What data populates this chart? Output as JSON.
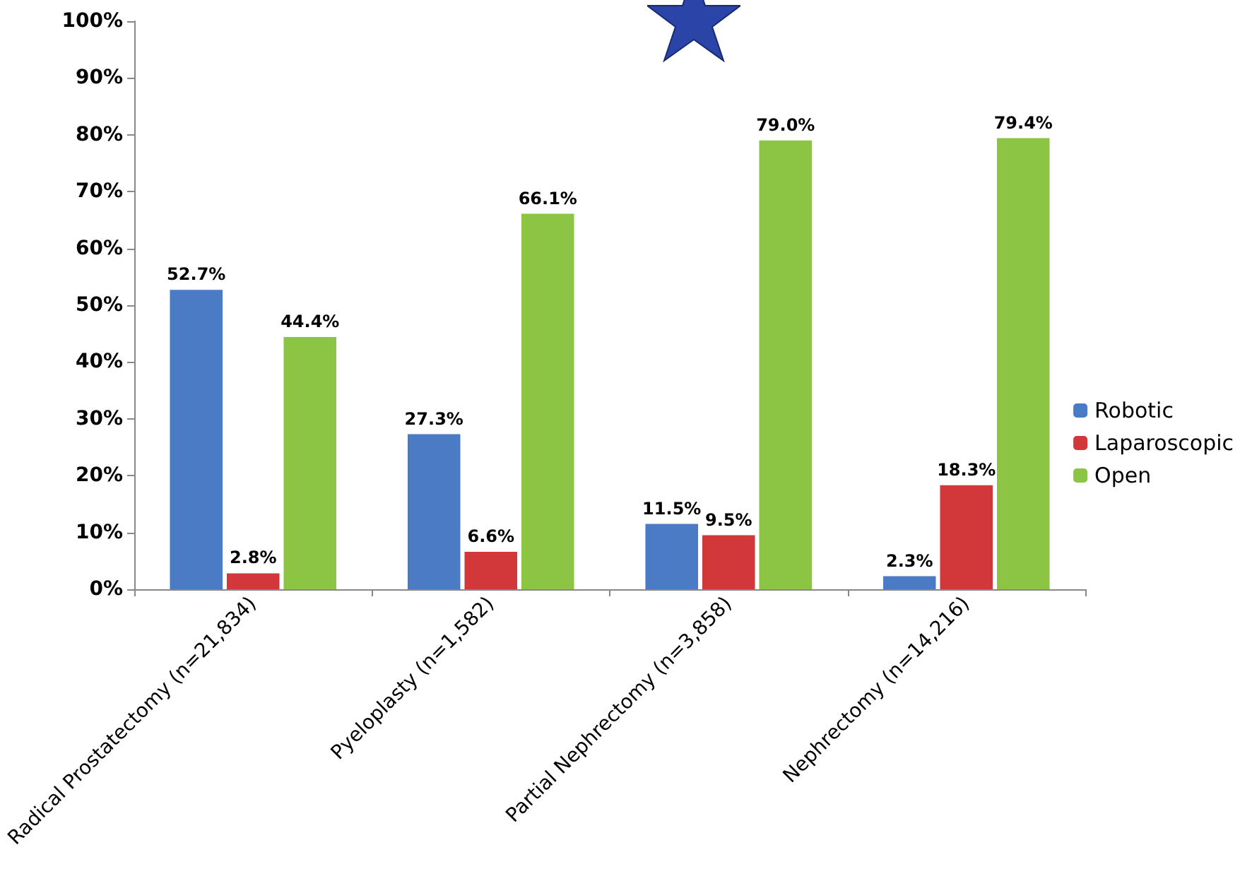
{
  "chart_data": {
    "type": "bar",
    "categories": [
      "Radical Prostatectomy (n=21,834)",
      "Pyeloplasty (n=1,582)",
      "Partial Nephrectomy (n=3,858)",
      "Nephrectomy (n=14,216)"
    ],
    "series": [
      {
        "name": "Robotic",
        "color": "#4a7bc4",
        "values": [
          52.7,
          27.3,
          11.5,
          2.3
        ],
        "value_labels": [
          "52.7%",
          "27.3%",
          "11.5%",
          "2.3%"
        ]
      },
      {
        "name": "Laparoscopic",
        "color": "#d2383a",
        "values": [
          2.8,
          6.6,
          9.5,
          18.3
        ],
        "value_labels": [
          "2.8%",
          "6.6%",
          "9.5%",
          "18.3%"
        ]
      },
      {
        "name": "Open",
        "color": "#8cc443",
        "values": [
          44.4,
          66.1,
          79.0,
          79.4
        ],
        "value_labels": [
          "44.4%",
          "66.1%",
          "79.0%",
          "79.4%"
        ]
      }
    ],
    "ylim": [
      0,
      100
    ],
    "yticks": [
      {
        "value": 0,
        "label": "0%"
      },
      {
        "value": 10,
        "label": "10%"
      },
      {
        "value": 20,
        "label": "20%"
      },
      {
        "value": 30,
        "label": "30%"
      },
      {
        "value": 40,
        "label": "40%"
      },
      {
        "value": 50,
        "label": "50%"
      },
      {
        "value": 60,
        "label": "60%"
      },
      {
        "value": 70,
        "label": "70%"
      },
      {
        "value": 80,
        "label": "80%"
      },
      {
        "value": 90,
        "label": "90%"
      },
      {
        "value": 100,
        "label": "100%"
      }
    ],
    "grid": false,
    "legend": "right"
  }
}
